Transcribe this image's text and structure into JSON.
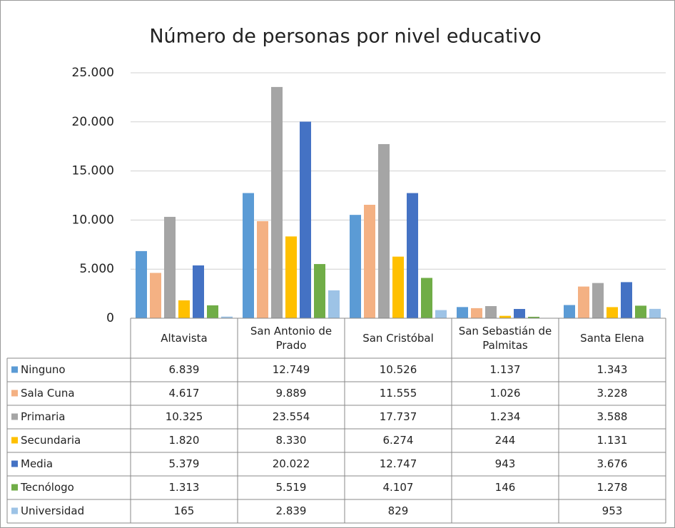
{
  "chart_data": {
    "type": "bar",
    "title": "Número de personas por nivel educativo",
    "categories": [
      "Altavista",
      "San Antonio de Prado",
      "San Cristóbal",
      "San Sebastián de Palmitas",
      "Santa Elena"
    ],
    "series": [
      {
        "name": "Ninguno",
        "color": "#5b9bd5",
        "values": [
          6839,
          12749,
          10526,
          1137,
          1343
        ],
        "value_labels": [
          "6.839",
          "12.749",
          "10.526",
          "1.137",
          "1.343"
        ]
      },
      {
        "name": "Sala Cuna",
        "color": "#f4b183",
        "values": [
          4617,
          9889,
          11555,
          1026,
          3228
        ],
        "value_labels": [
          "4.617",
          "9.889",
          "11.555",
          "1.026",
          "3.228"
        ]
      },
      {
        "name": "Primaria",
        "color": "#a5a5a5",
        "values": [
          10325,
          23554,
          17737,
          1234,
          3588
        ],
        "value_labels": [
          "10.325",
          "23.554",
          "17.737",
          "1.234",
          "3.588"
        ]
      },
      {
        "name": "Secundaria",
        "color": "#ffc000",
        "values": [
          1820,
          8330,
          6274,
          244,
          1131
        ],
        "value_labels": [
          "1.820",
          "8.330",
          "6.274",
          "244",
          "1.131"
        ]
      },
      {
        "name": "Media",
        "color": "#4472c4",
        "values": [
          5379,
          20022,
          12747,
          943,
          3676
        ],
        "value_labels": [
          "5.379",
          "20.022",
          "12.747",
          "943",
          "3.676"
        ]
      },
      {
        "name": "Tecnólogo",
        "color": "#70ad47",
        "values": [
          1313,
          5519,
          4107,
          146,
          1278
        ],
        "value_labels": [
          "1.313",
          "5.519",
          "4.107",
          "146",
          "1.278"
        ]
      },
      {
        "name": "Universidad",
        "color": "#9dc3e6",
        "values": [
          165,
          2839,
          829,
          null,
          953
        ],
        "value_labels": [
          "165",
          "2.839",
          "829",
          null,
          "953"
        ]
      }
    ],
    "ylim": [
      0,
      25000
    ],
    "yticks": [
      0,
      {
        "value": 5000,
        "label": "5.000"
      },
      {
        "value": 10000,
        "label": "10.000"
      },
      {
        "value": 15000,
        "label": "15.000"
      },
      {
        "value": 20000,
        "label": "20.000"
      },
      {
        "value": 25000,
        "label": "25.000"
      }
    ],
    "grid": true
  }
}
